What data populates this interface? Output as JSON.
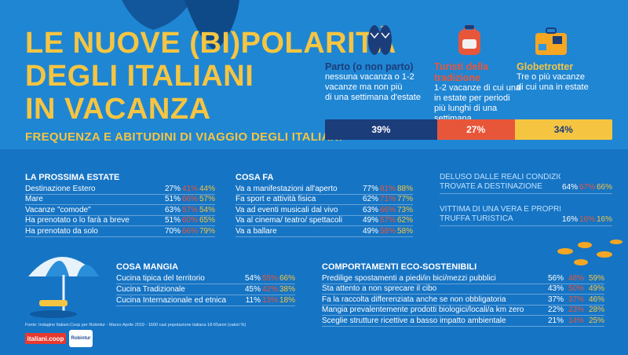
{
  "header": {
    "title_lines": [
      "LE NUOVE (BI)POLARITÀ",
      "DEGLI ITALIANI",
      "IN VACANZA"
    ],
    "subtitle": "FREQUENZA E ABITUDINI DI VIAGGIO DEGLI ITALIANI"
  },
  "colors": {
    "navy": "#1b3d7a",
    "red": "#e8563a",
    "yellow": "#f5c542",
    "background": "#1e88d6"
  },
  "categories": [
    {
      "icon": "flip-flops-icon",
      "name": "Parto (o non parto)",
      "desc": [
        "nessuna vacanza  o 1-2",
        "vacanze ma non più",
        "di una settimana d'estate"
      ],
      "share": "39%",
      "share_value": 39
    },
    {
      "icon": "backpack-icon",
      "name": "Turisti della tradizione",
      "desc": [
        "1-2 vacanze di cui una",
        "in estate per periodi",
        "più lunghi di una settimana"
      ],
      "share": "27%",
      "share_value": 27
    },
    {
      "icon": "suitcase-icon",
      "name": "Globetrotter",
      "desc": [
        "Tre o più vacanze",
        "di cui una in estate"
      ],
      "share": "34%",
      "share_value": 34
    }
  ],
  "prossima_estate": {
    "title": "LA PROSSIMA ESTATE",
    "rows": [
      {
        "label": "Destinazione Estero",
        "v": [
          "27%",
          "41%",
          "44%"
        ]
      },
      {
        "label": "Mare",
        "v": [
          "51%",
          "66%",
          "57%"
        ]
      },
      {
        "label": "Vacanze \"comode\"",
        "v": [
          "63%",
          "57%",
          "54%"
        ]
      },
      {
        "label": "Ha prenotato o lo farà a breve",
        "v": [
          "51%",
          "60%",
          "65%"
        ]
      },
      {
        "label": "Ha prenotato da solo",
        "v": [
          "70%",
          "66%",
          "79%"
        ]
      }
    ]
  },
  "cosa_fa": {
    "title": "COSA FA",
    "rows": [
      {
        "label": "Va a manifestazioni all'aperto",
        "v": [
          "77%",
          "81%",
          "88%"
        ]
      },
      {
        "label": "Fa sport e attività fisica",
        "v": [
          "62%",
          "71%",
          "77%"
        ]
      },
      {
        "label": "Va ad eventi musicali dal vivo",
        "v": [
          "63%",
          "66%",
          "73%"
        ]
      },
      {
        "label": "Va al cinema/ teatro/ spettacoli",
        "v": [
          "49%",
          "57%",
          "62%"
        ]
      },
      {
        "label": "Va a ballare",
        "v": [
          "49%",
          "58%",
          "58%"
        ]
      }
    ]
  },
  "deluso": {
    "title_lines": [
      "DELUSO DALLE REALI CONDIZIONI",
      "TROVATE A DESTINAZIONE"
    ],
    "v": [
      "64%",
      "67%",
      "66%"
    ]
  },
  "vittima": {
    "title_lines": [
      "VITTIMA DI UNA VERA E PROPRIA",
      "TRUFFA TURISTICA"
    ],
    "v": [
      "16%",
      "16%",
      "16%"
    ]
  },
  "cosa_mangia": {
    "title": "COSA MANGIA",
    "rows": [
      {
        "label": "Cucina tipica del territorio",
        "v": [
          "54%",
          "55%",
          "66%"
        ]
      },
      {
        "label": "Cucina Tradizionale",
        "v": [
          "45%",
          "42%",
          "38%"
        ]
      },
      {
        "label": "Cucina Internazionale ed etnica",
        "v": [
          "11%",
          "13%",
          "18%"
        ]
      }
    ]
  },
  "eco": {
    "title": "COMPORTAMENTI ECO-SOSTENIBILI",
    "rows": [
      {
        "label": "Predilige spostamenti a piedi/in bici/mezzi pubblici",
        "v": [
          "56%",
          "48%",
          "59%"
        ]
      },
      {
        "label": "Sta attento a non sprecare il cibo",
        "v": [
          "43%",
          "50%",
          "49%"
        ]
      },
      {
        "label": "Fa la raccolta differenziata anche se non obbligatoria",
        "v": [
          "37%",
          "37%",
          "46%"
        ]
      },
      {
        "label": "Mangia prevalentemente prodotti biologici/locali/a km zero",
        "v": [
          "22%",
          "23%",
          "28%"
        ]
      },
      {
        "label": "Sceglie strutture ricettive a basso impatto ambientale",
        "v": [
          "21%",
          "14%",
          "25%"
        ]
      }
    ]
  },
  "footer": {
    "source": "Fonte: Indagine Italiani.Coop per Robintur - Marzo-Aprile 2019 - 1600 casi popolazione italiana 18-65anni (valori %)",
    "logo1": "italiani.coop",
    "logo2": "Robintur"
  }
}
